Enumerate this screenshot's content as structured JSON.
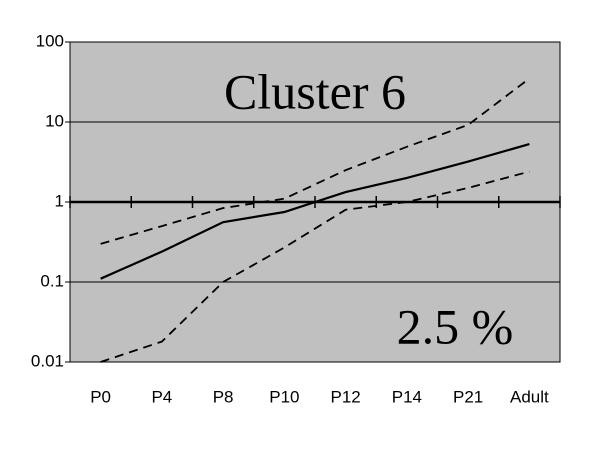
{
  "chart_data": {
    "type": "line",
    "annotations": [
      "Cluster 6",
      "2.5 %"
    ],
    "categories": [
      "P0",
      "P4",
      "P8",
      "P10",
      "P12",
      "P14",
      "P21",
      "Adult"
    ],
    "series": [
      {
        "color": "#000000",
        "dash": false,
        "values": [
          0.11,
          0.24,
          0.56,
          0.75,
          1.33,
          2.0,
          3.2,
          5.3
        ]
      },
      {
        "color": "#000000",
        "dash": true,
        "values": [
          0.3,
          0.5,
          0.84,
          1.1,
          2.5,
          4.9,
          9.2,
          35
        ]
      },
      {
        "color": "#000000",
        "dash": true,
        "values": [
          0.01,
          0.018,
          0.1,
          0.27,
          0.8,
          1.0,
          1.5,
          2.4
        ]
      }
    ],
    "ylim": [
      0.01,
      100
    ],
    "yticks": [
      0.01,
      0.1,
      1,
      10,
      100
    ],
    "log_y": true,
    "grid": true,
    "x_axis_crosses": 1,
    "plot_background": "#c0c0c0"
  }
}
